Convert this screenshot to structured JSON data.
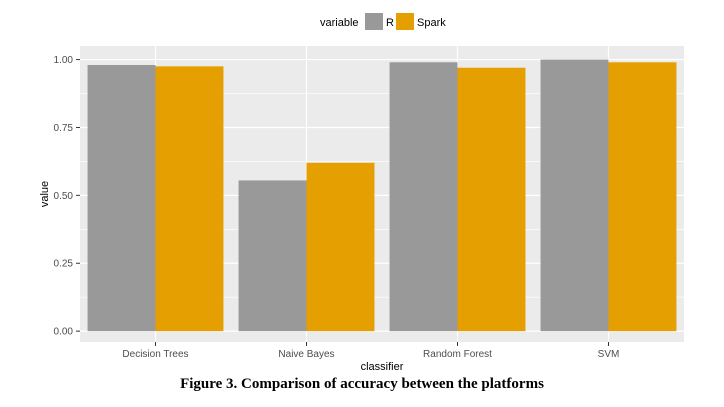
{
  "chart_data": {
    "type": "bar",
    "categories": [
      "Decision Trees",
      "Naive Bayes",
      "Random Forest",
      "SVM"
    ],
    "series": [
      {
        "name": "R",
        "values": [
          0.98,
          0.555,
          0.99,
          1.0
        ],
        "color": "#999999"
      },
      {
        "name": "Spark",
        "values": [
          0.975,
          0.62,
          0.97,
          0.99
        ],
        "color": "#E69F00"
      }
    ],
    "xlabel": "classifier",
    "ylabel": "value",
    "ylim": [
      -0.04,
      1.05
    ],
    "yticks": [
      0.0,
      0.25,
      0.5,
      0.75,
      1.0
    ],
    "ytick_labels": [
      "0.00",
      "0.25",
      "0.50",
      "0.75",
      "1.00"
    ],
    "legend": {
      "title": "variable",
      "position": "top"
    },
    "grid": true,
    "panel_background": "#EBEBEB"
  },
  "caption": "Figure 3. Comparison of accuracy between the platforms"
}
